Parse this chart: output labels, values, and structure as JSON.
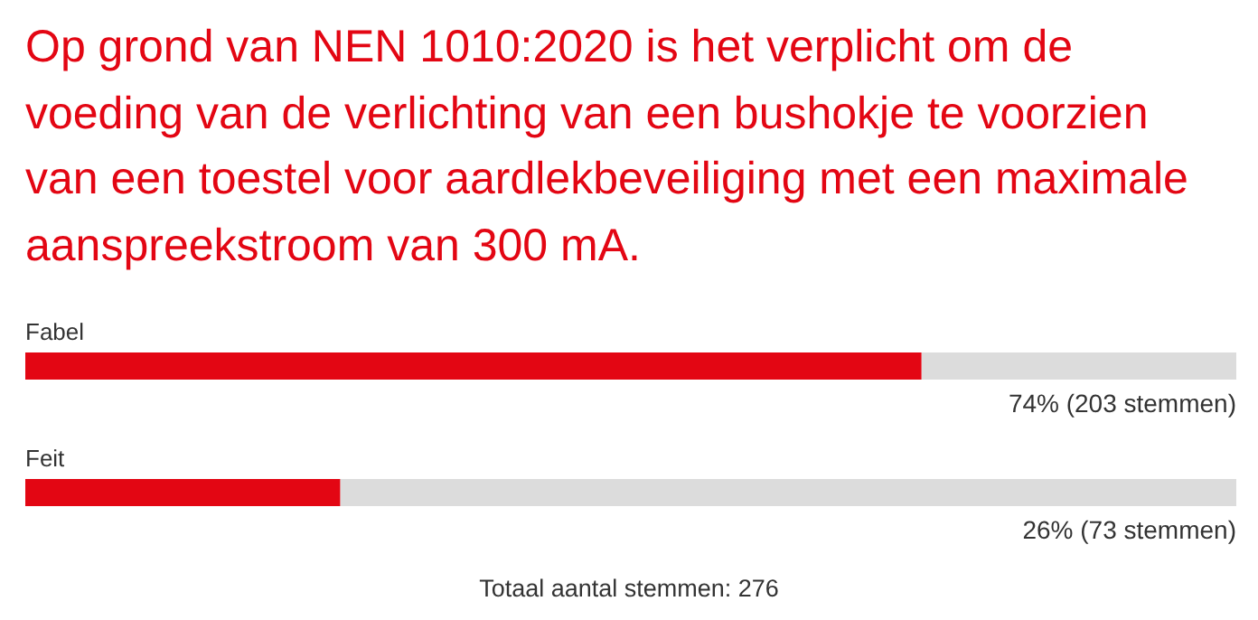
{
  "chart_data": {
    "type": "bar",
    "orientation": "horizontal",
    "title": "Op grond van NEN 1010:2020 is het verplicht om de voeding van de verlichting van een bushokje te voorzien van een toestel voor aardlekbeveiliging met een maximale aanspreekstroom van 300 mA.",
    "categories": [
      "Fabel",
      "Feit"
    ],
    "values": [
      74,
      26
    ],
    "value_labels": [
      "74% (203 stemmen)",
      "26% (73 stemmen)"
    ],
    "color": "#e30613",
    "xlim": [
      0,
      100
    ],
    "annotations": [
      "Totaal aantal stemmen: 276"
    ]
  }
}
